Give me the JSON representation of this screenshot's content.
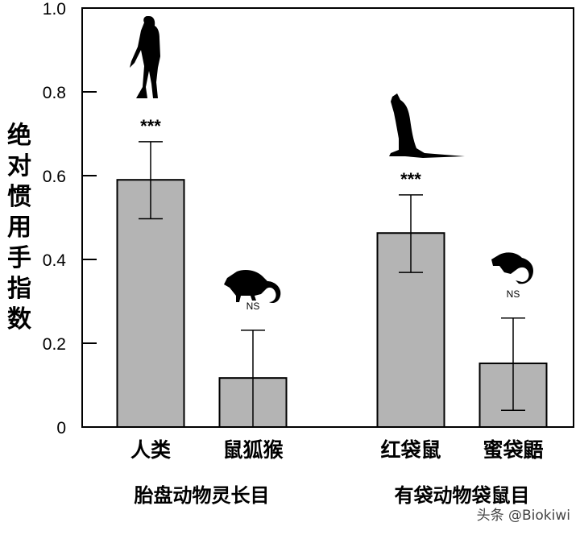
{
  "chart_data": {
    "type": "bar",
    "title": "",
    "ylabel": "绝对惯用手指数",
    "xlabel": "",
    "ylim": [
      0,
      1.0
    ],
    "yticks": [
      "0",
      "0.2",
      "0.4",
      "0.6",
      "0.8",
      "1.0"
    ],
    "categories": [
      "人类",
      "鼠狐猴",
      "红袋鼠",
      "蜜袋鼯"
    ],
    "groups": [
      {
        "label": "胎盘动物灵长目",
        "categories": [
          "人类",
          "鼠狐猴"
        ]
      },
      {
        "label": "有袋动物袋鼠目",
        "categories": [
          "红袋鼠",
          "蜜袋鼯"
        ]
      }
    ],
    "values": [
      0.59,
      0.117,
      0.463,
      0.152
    ],
    "error_low": [
      0.497,
      0,
      0.369,
      0.04
    ],
    "error_high": [
      0.681,
      0.231,
      0.554,
      0.26
    ],
    "significance": [
      "***",
      "NS",
      "***",
      "NS"
    ],
    "icons": [
      "human-silhouette-icon",
      "mouse-lemur-silhouette-icon",
      "kangaroo-silhouette-icon",
      "sugar-glider-silhouette-icon"
    ],
    "bar_color": "#b4b4b4",
    "grid": false
  },
  "watermark": "头条 @Biokiwi"
}
